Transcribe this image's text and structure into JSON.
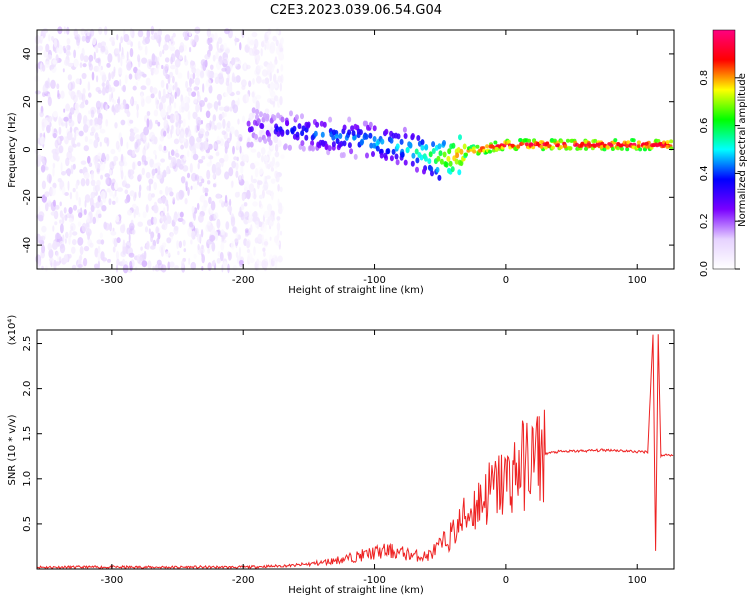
{
  "title": "C2E3.2023.039.06.54.G04",
  "chart_data": [
    {
      "type": "heatmap",
      "xlabel": "Height of straight line (km)",
      "ylabel": "Frequency (Hz)",
      "xlim": [
        -357,
        128
      ],
      "ylim": [
        -50,
        50
      ],
      "xticks": [
        -300,
        -200,
        -100,
        0,
        100
      ],
      "yticks": [
        -40,
        -20,
        0,
        20,
        40
      ],
      "colorbar": {
        "label": "Normalized spectral amplitude",
        "range": [
          0.0,
          1.0
        ],
        "ticks": [
          "0.0",
          "0.2",
          "0.4",
          "0.6",
          "0.8"
        ],
        "tick_values": [
          0.0,
          0.2,
          0.4,
          0.6,
          0.8
        ],
        "colormap": [
          "#ffffff",
          "#e6d2ff",
          "#7a00ff",
          "#0000ff",
          "#00ffff",
          "#00ff00",
          "#ffff00",
          "#ff0000",
          "#ff0080"
        ]
      },
      "features": [
        {
          "name": "noise",
          "x_range": [
            -357,
            -195
          ],
          "freq_range": [
            -50,
            50
          ],
          "amplitude": 0.08
        },
        {
          "name": "faded-noise",
          "x_range": [
            -195,
            -170
          ],
          "freq_range": [
            -50,
            50
          ],
          "amplitude": 0.04
        },
        {
          "name": "signal-band",
          "points": [
            [
              -195,
              9
            ],
            [
              -160,
              8
            ],
            [
              -140,
              6
            ],
            [
              -120,
              5
            ],
            [
              -100,
              3
            ],
            [
              -80,
              1
            ],
            [
              -60,
              -2
            ],
            [
              -50,
              -4
            ],
            [
              -40,
              -3
            ],
            [
              -30,
              -1
            ],
            [
              -20,
              0
            ],
            [
              0,
              2
            ],
            [
              50,
              2
            ],
            [
              110,
              2
            ],
            [
              128,
              2
            ]
          ],
          "amplitude": [
            0.3,
            0.4,
            0.45,
            0.45,
            0.5,
            0.5,
            0.6,
            0.7,
            0.8,
            0.85,
            0.9,
            0.95,
            0.95,
            0.95,
            0.95
          ]
        }
      ]
    },
    {
      "type": "line",
      "xlabel": "Height of straight line (km)",
      "ylabel": "SNR (10 * v/v)",
      "y_multiplier": "(x10⁴)",
      "xlim": [
        -357,
        128
      ],
      "ylim": [
        0,
        2.65
      ],
      "xticks": [
        -300,
        -200,
        -100,
        0,
        100
      ],
      "yticks": [
        0.5,
        1.0,
        1.5,
        2.0,
        2.5
      ],
      "ytick_labels": [
        "0.5",
        "1.0",
        "1.5",
        "2.0",
        "2.5"
      ],
      "color": "#ee2222",
      "x": [
        -357,
        -300,
        -250,
        -200,
        -180,
        -160,
        -140,
        -120,
        -100,
        -90,
        -80,
        -70,
        -60,
        -50,
        -40,
        -30,
        -20,
        -10,
        0,
        10,
        20,
        30,
        40,
        60,
        80,
        100,
        108,
        112,
        114,
        116,
        118,
        120,
        128
      ],
      "y": [
        0.02,
        0.02,
        0.02,
        0.02,
        0.03,
        0.04,
        0.07,
        0.12,
        0.18,
        0.2,
        0.18,
        0.15,
        0.14,
        0.25,
        0.4,
        0.6,
        0.75,
        0.88,
        0.97,
        1.12,
        1.22,
        1.28,
        1.3,
        1.31,
        1.32,
        1.3,
        1.3,
        2.6,
        0.2,
        2.6,
        1.25,
        1.27,
        1.26
      ]
    }
  ]
}
